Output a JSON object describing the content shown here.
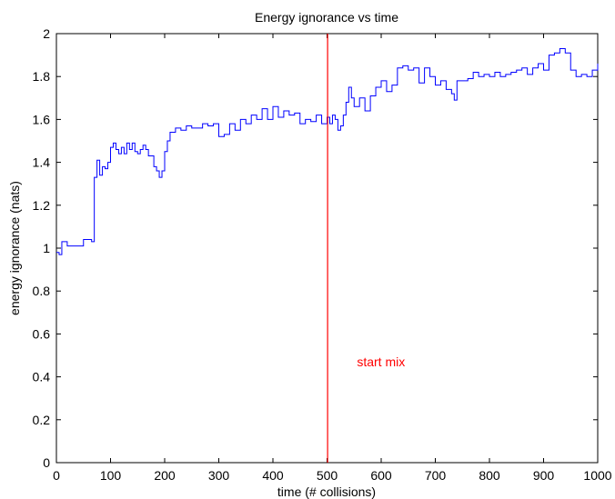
{
  "chart_data": {
    "type": "line",
    "title": "Energy ignorance vs time",
    "xlabel": "time (# collisions)",
    "ylabel": "energy ignorance (nats)",
    "xlim": [
      0,
      1000
    ],
    "ylim": [
      0,
      2
    ],
    "x_ticks": [
      "0",
      "100",
      "200",
      "300",
      "400",
      "500",
      "600",
      "700",
      "800",
      "900",
      "1000"
    ],
    "y_ticks": [
      "0",
      "0.2",
      "0.4",
      "0.6",
      "0.8",
      "1",
      "1.2",
      "1.4",
      "1.6",
      "1.8",
      "2"
    ],
    "grid": false,
    "series": [
      {
        "color": "#0000ff",
        "x": [
          0,
          5,
          10,
          20,
          30,
          40,
          50,
          60,
          65,
          70,
          75,
          80,
          85,
          90,
          95,
          100,
          105,
          110,
          115,
          120,
          125,
          130,
          135,
          140,
          145,
          150,
          155,
          160,
          165,
          170,
          175,
          180,
          185,
          190,
          195,
          200,
          205,
          210,
          220,
          230,
          240,
          250,
          260,
          270,
          280,
          290,
          300,
          310,
          320,
          330,
          340,
          350,
          360,
          370,
          380,
          390,
          400,
          410,
          420,
          430,
          440,
          450,
          460,
          470,
          480,
          490,
          500,
          505,
          510,
          515,
          520,
          525,
          530,
          535,
          540,
          545,
          550,
          560,
          570,
          580,
          590,
          600,
          610,
          620,
          630,
          640,
          650,
          660,
          670,
          680,
          690,
          700,
          710,
          720,
          730,
          735,
          740,
          750,
          760,
          770,
          780,
          790,
          800,
          810,
          820,
          830,
          840,
          850,
          860,
          870,
          880,
          890,
          900,
          910,
          920,
          930,
          940,
          950,
          960,
          970,
          980,
          990,
          1000
        ],
        "y": [
          0.98,
          0.97,
          1.03,
          1.01,
          1.01,
          1.01,
          1.04,
          1.04,
          1.03,
          1.33,
          1.41,
          1.34,
          1.38,
          1.37,
          1.4,
          1.47,
          1.49,
          1.46,
          1.44,
          1.47,
          1.44,
          1.49,
          1.46,
          1.49,
          1.45,
          1.44,
          1.46,
          1.48,
          1.46,
          1.43,
          1.43,
          1.38,
          1.36,
          1.33,
          1.36,
          1.45,
          1.5,
          1.54,
          1.56,
          1.55,
          1.57,
          1.56,
          1.56,
          1.58,
          1.57,
          1.58,
          1.52,
          1.53,
          1.58,
          1.55,
          1.6,
          1.58,
          1.62,
          1.6,
          1.65,
          1.6,
          1.66,
          1.61,
          1.64,
          1.62,
          1.63,
          1.58,
          1.6,
          1.59,
          1.62,
          1.58,
          1.61,
          1.58,
          1.62,
          1.6,
          1.55,
          1.57,
          1.62,
          1.68,
          1.75,
          1.7,
          1.66,
          1.7,
          1.64,
          1.71,
          1.75,
          1.78,
          1.73,
          1.76,
          1.84,
          1.85,
          1.83,
          1.84,
          1.77,
          1.84,
          1.8,
          1.76,
          1.78,
          1.74,
          1.72,
          1.69,
          1.78,
          1.78,
          1.79,
          1.82,
          1.8,
          1.81,
          1.8,
          1.82,
          1.8,
          1.81,
          1.82,
          1.83,
          1.84,
          1.81,
          1.84,
          1.86,
          1.83,
          1.9,
          1.91,
          1.93,
          1.91,
          1.83,
          1.8,
          1.81,
          1.8,
          1.83,
          1.86
        ]
      }
    ],
    "vline": {
      "x": 501,
      "color": "#ff0000"
    },
    "annotation": {
      "text": "start mix",
      "x": 530,
      "y": 0.47,
      "color": "#ff0000"
    }
  }
}
